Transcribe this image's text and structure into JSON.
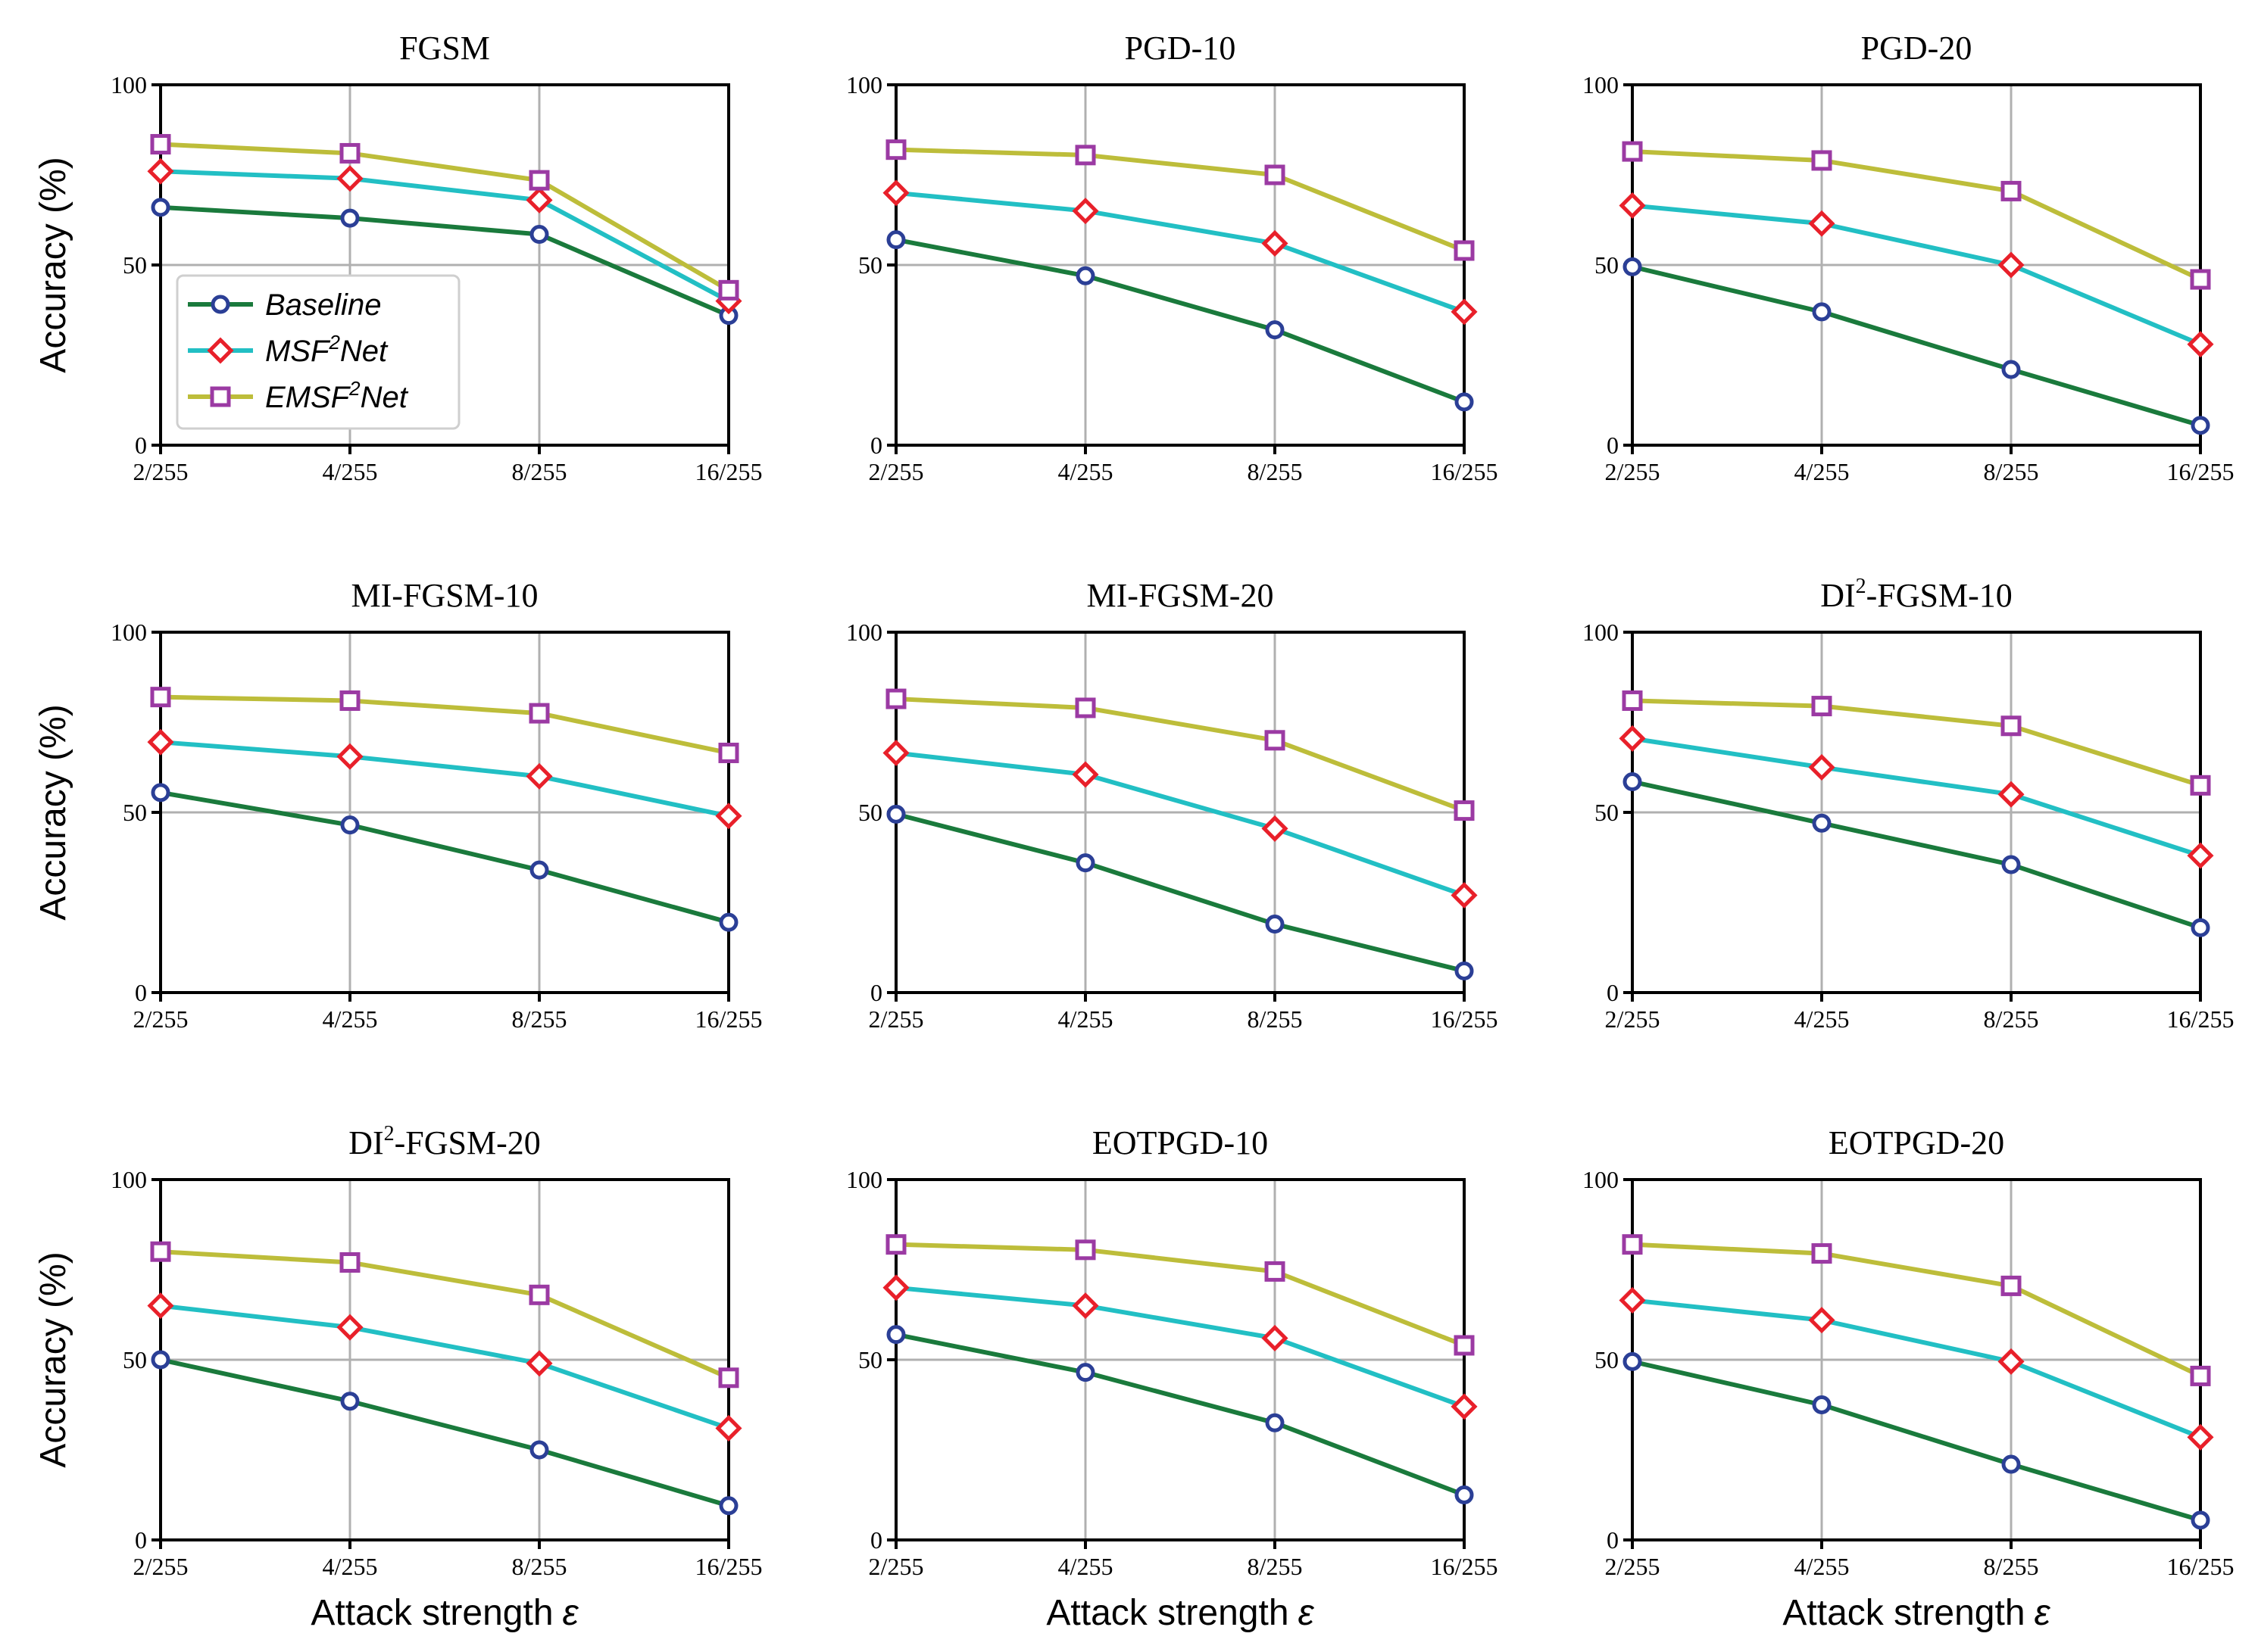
{
  "figure": {
    "series_names": [
      "Baseline",
      "MSF2Net",
      "EMSF2Net"
    ],
    "series_colors": [
      "#1a7a3c",
      "#22bfc4",
      "#bdbd3a"
    ],
    "marker_colors": [
      "#2b3f96",
      "#e8202a",
      "#9b3aa3"
    ],
    "x_axis_label": "Attack strength",
    "x_axis_symbol": "ε",
    "y_axis_label": "Accuracy (%)",
    "legend": [
      {
        "pre": "Baseline",
        "sup": "",
        "post": ""
      },
      {
        "pre": "MSF",
        "sup": "2",
        "post": "Net"
      },
      {
        "pre": "EMSF",
        "sup": "2",
        "post": "Net"
      }
    ]
  },
  "chart_data": [
    {
      "type": "line",
      "title": "FGSM",
      "title_sup": "",
      "title_post": "",
      "categories": [
        "2/255",
        "4/255",
        "8/255",
        "16/255"
      ],
      "ylim": [
        0,
        100
      ],
      "yticks": [
        0,
        50,
        100
      ],
      "grid": true,
      "series": [
        {
          "name": "Baseline",
          "values": [
            66,
            63,
            58.5,
            36
          ]
        },
        {
          "name": "MSF2Net",
          "values": [
            76,
            74,
            68,
            40
          ]
        },
        {
          "name": "EMSF2Net",
          "values": [
            83.5,
            81,
            73.5,
            43
          ]
        }
      ]
    },
    {
      "type": "line",
      "title": "PGD-10",
      "title_sup": "",
      "title_post": "",
      "categories": [
        "2/255",
        "4/255",
        "8/255",
        "16/255"
      ],
      "ylim": [
        0,
        100
      ],
      "yticks": [
        0,
        50,
        100
      ],
      "grid": true,
      "series": [
        {
          "name": "Baseline",
          "values": [
            57,
            47,
            32,
            12
          ]
        },
        {
          "name": "MSF2Net",
          "values": [
            70,
            65,
            56,
            37
          ]
        },
        {
          "name": "EMSF2Net",
          "values": [
            82,
            80.5,
            75,
            54
          ]
        }
      ]
    },
    {
      "type": "line",
      "title": "PGD-20",
      "title_sup": "",
      "title_post": "",
      "categories": [
        "2/255",
        "4/255",
        "8/255",
        "16/255"
      ],
      "ylim": [
        0,
        100
      ],
      "yticks": [
        0,
        50,
        100
      ],
      "grid": true,
      "series": [
        {
          "name": "Baseline",
          "values": [
            49.5,
            37,
            21,
            5.5
          ]
        },
        {
          "name": "MSF2Net",
          "values": [
            66.5,
            61.5,
            50,
            28
          ]
        },
        {
          "name": "EMSF2Net",
          "values": [
            81.5,
            79,
            70.5,
            46
          ]
        }
      ]
    },
    {
      "type": "line",
      "title": "MI-FGSM-10",
      "title_sup": "",
      "title_post": "",
      "categories": [
        "2/255",
        "4/255",
        "8/255",
        "16/255"
      ],
      "ylim": [
        0,
        100
      ],
      "yticks": [
        0,
        50,
        100
      ],
      "grid": true,
      "series": [
        {
          "name": "Baseline",
          "values": [
            55.5,
            46.5,
            34,
            19.5
          ]
        },
        {
          "name": "MSF2Net",
          "values": [
            69.5,
            65.5,
            60,
            49
          ]
        },
        {
          "name": "EMSF2Net",
          "values": [
            82,
            81,
            77.5,
            66.5
          ]
        }
      ]
    },
    {
      "type": "line",
      "title": "MI-FGSM-20",
      "title_sup": "",
      "title_post": "",
      "categories": [
        "2/255",
        "4/255",
        "8/255",
        "16/255"
      ],
      "ylim": [
        0,
        100
      ],
      "yticks": [
        0,
        50,
        100
      ],
      "grid": true,
      "series": [
        {
          "name": "Baseline",
          "values": [
            49.5,
            36,
            19,
            6
          ]
        },
        {
          "name": "MSF2Net",
          "values": [
            66.5,
            60.5,
            45.5,
            27
          ]
        },
        {
          "name": "EMSF2Net",
          "values": [
            81.5,
            79,
            70,
            50.5
          ]
        }
      ]
    },
    {
      "type": "line",
      "title": "DI",
      "title_sup": "2",
      "title_post": "-FGSM-10",
      "categories": [
        "2/255",
        "4/255",
        "8/255",
        "16/255"
      ],
      "ylim": [
        0,
        100
      ],
      "yticks": [
        0,
        50,
        100
      ],
      "grid": true,
      "series": [
        {
          "name": "Baseline",
          "values": [
            58.5,
            47,
            35.5,
            18
          ]
        },
        {
          "name": "MSF2Net",
          "values": [
            70.5,
            62.5,
            55,
            38
          ]
        },
        {
          "name": "EMSF2Net",
          "values": [
            81,
            79.5,
            74,
            57.5
          ]
        }
      ]
    },
    {
      "type": "line",
      "title": "DI",
      "title_sup": "2",
      "title_post": "-FGSM-20",
      "categories": [
        "2/255",
        "4/255",
        "8/255",
        "16/255"
      ],
      "ylim": [
        0,
        100
      ],
      "yticks": [
        0,
        50,
        100
      ],
      "grid": true,
      "series": [
        {
          "name": "Baseline",
          "values": [
            50,
            38.5,
            25,
            9.5
          ]
        },
        {
          "name": "MSF2Net",
          "values": [
            65,
            59,
            49,
            31
          ]
        },
        {
          "name": "EMSF2Net",
          "values": [
            80,
            77,
            68,
            45
          ]
        }
      ]
    },
    {
      "type": "line",
      "title": "EOTPGD-10",
      "title_sup": "",
      "title_post": "",
      "categories": [
        "2/255",
        "4/255",
        "8/255",
        "16/255"
      ],
      "ylim": [
        0,
        100
      ],
      "yticks": [
        0,
        50,
        100
      ],
      "grid": true,
      "series": [
        {
          "name": "Baseline",
          "values": [
            57,
            46.5,
            32.5,
            12.5
          ]
        },
        {
          "name": "MSF2Net",
          "values": [
            70,
            65,
            56,
            37
          ]
        },
        {
          "name": "EMSF2Net",
          "values": [
            82,
            80.5,
            74.5,
            54
          ]
        }
      ]
    },
    {
      "type": "line",
      "title": "EOTPGD-20",
      "title_sup": "",
      "title_post": "",
      "categories": [
        "2/255",
        "4/255",
        "8/255",
        "16/255"
      ],
      "ylim": [
        0,
        100
      ],
      "yticks": [
        0,
        50,
        100
      ],
      "grid": true,
      "series": [
        {
          "name": "Baseline",
          "values": [
            49.5,
            37.5,
            21,
            5.5
          ]
        },
        {
          "name": "MSF2Net",
          "values": [
            66.5,
            61,
            49.5,
            28.5
          ]
        },
        {
          "name": "EMSF2Net",
          "values": [
            82,
            79.5,
            70.5,
            45.5
          ]
        }
      ]
    }
  ]
}
